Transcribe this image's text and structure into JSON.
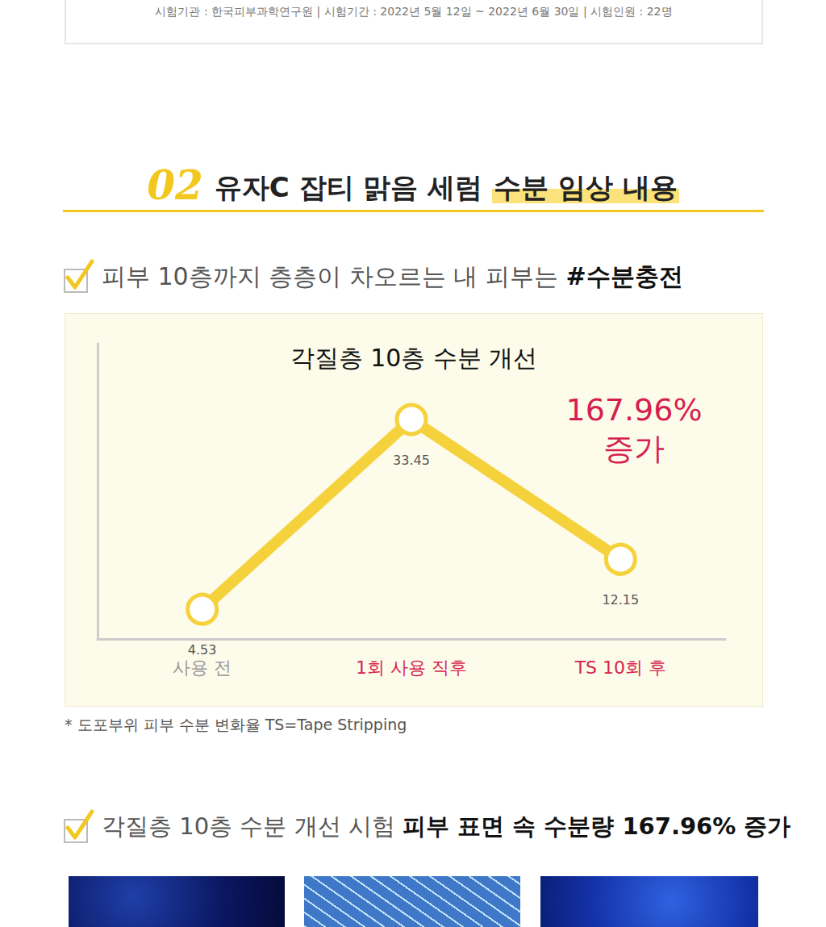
{
  "header_note": "시험기관 : 한국피부과학연구원 | 시험기간 : 2022년 5월 12일 ~ 2022년 6월 30일 | 시험인원 : 22명",
  "section": {
    "number": "02",
    "title": "유자C 잡티 맑음 세럼",
    "title_highlight": "수분 임상 내용"
  },
  "point_1": {
    "text": "피부 10층까지 층층이 차오르는 내 피부는",
    "bold": "#수분충전"
  },
  "chart_data": {
    "type": "line",
    "title": "각질층 10층 수분 개선",
    "categories": [
      "사용 전",
      "1회 사용 직후",
      "TS 10회 후"
    ],
    "values": [
      4.53,
      33.45,
      12.15
    ],
    "color": "#f5d23c",
    "marker": "circle",
    "line_style": "solid",
    "ylim": [
      0,
      45
    ],
    "yticks": [],
    "tick_labels": "x",
    "grid": false,
    "data_labels": true,
    "annotation": [
      "167.96%",
      "증가"
    ]
  },
  "footnote": "* 도포부위 피부 수분 변화율 TS=Tape Stripping",
  "point_2": {
    "text": "각질층 10층 수분 개선 시험",
    "bold": "피부 표면 속 수분량 167.96% 증가"
  }
}
